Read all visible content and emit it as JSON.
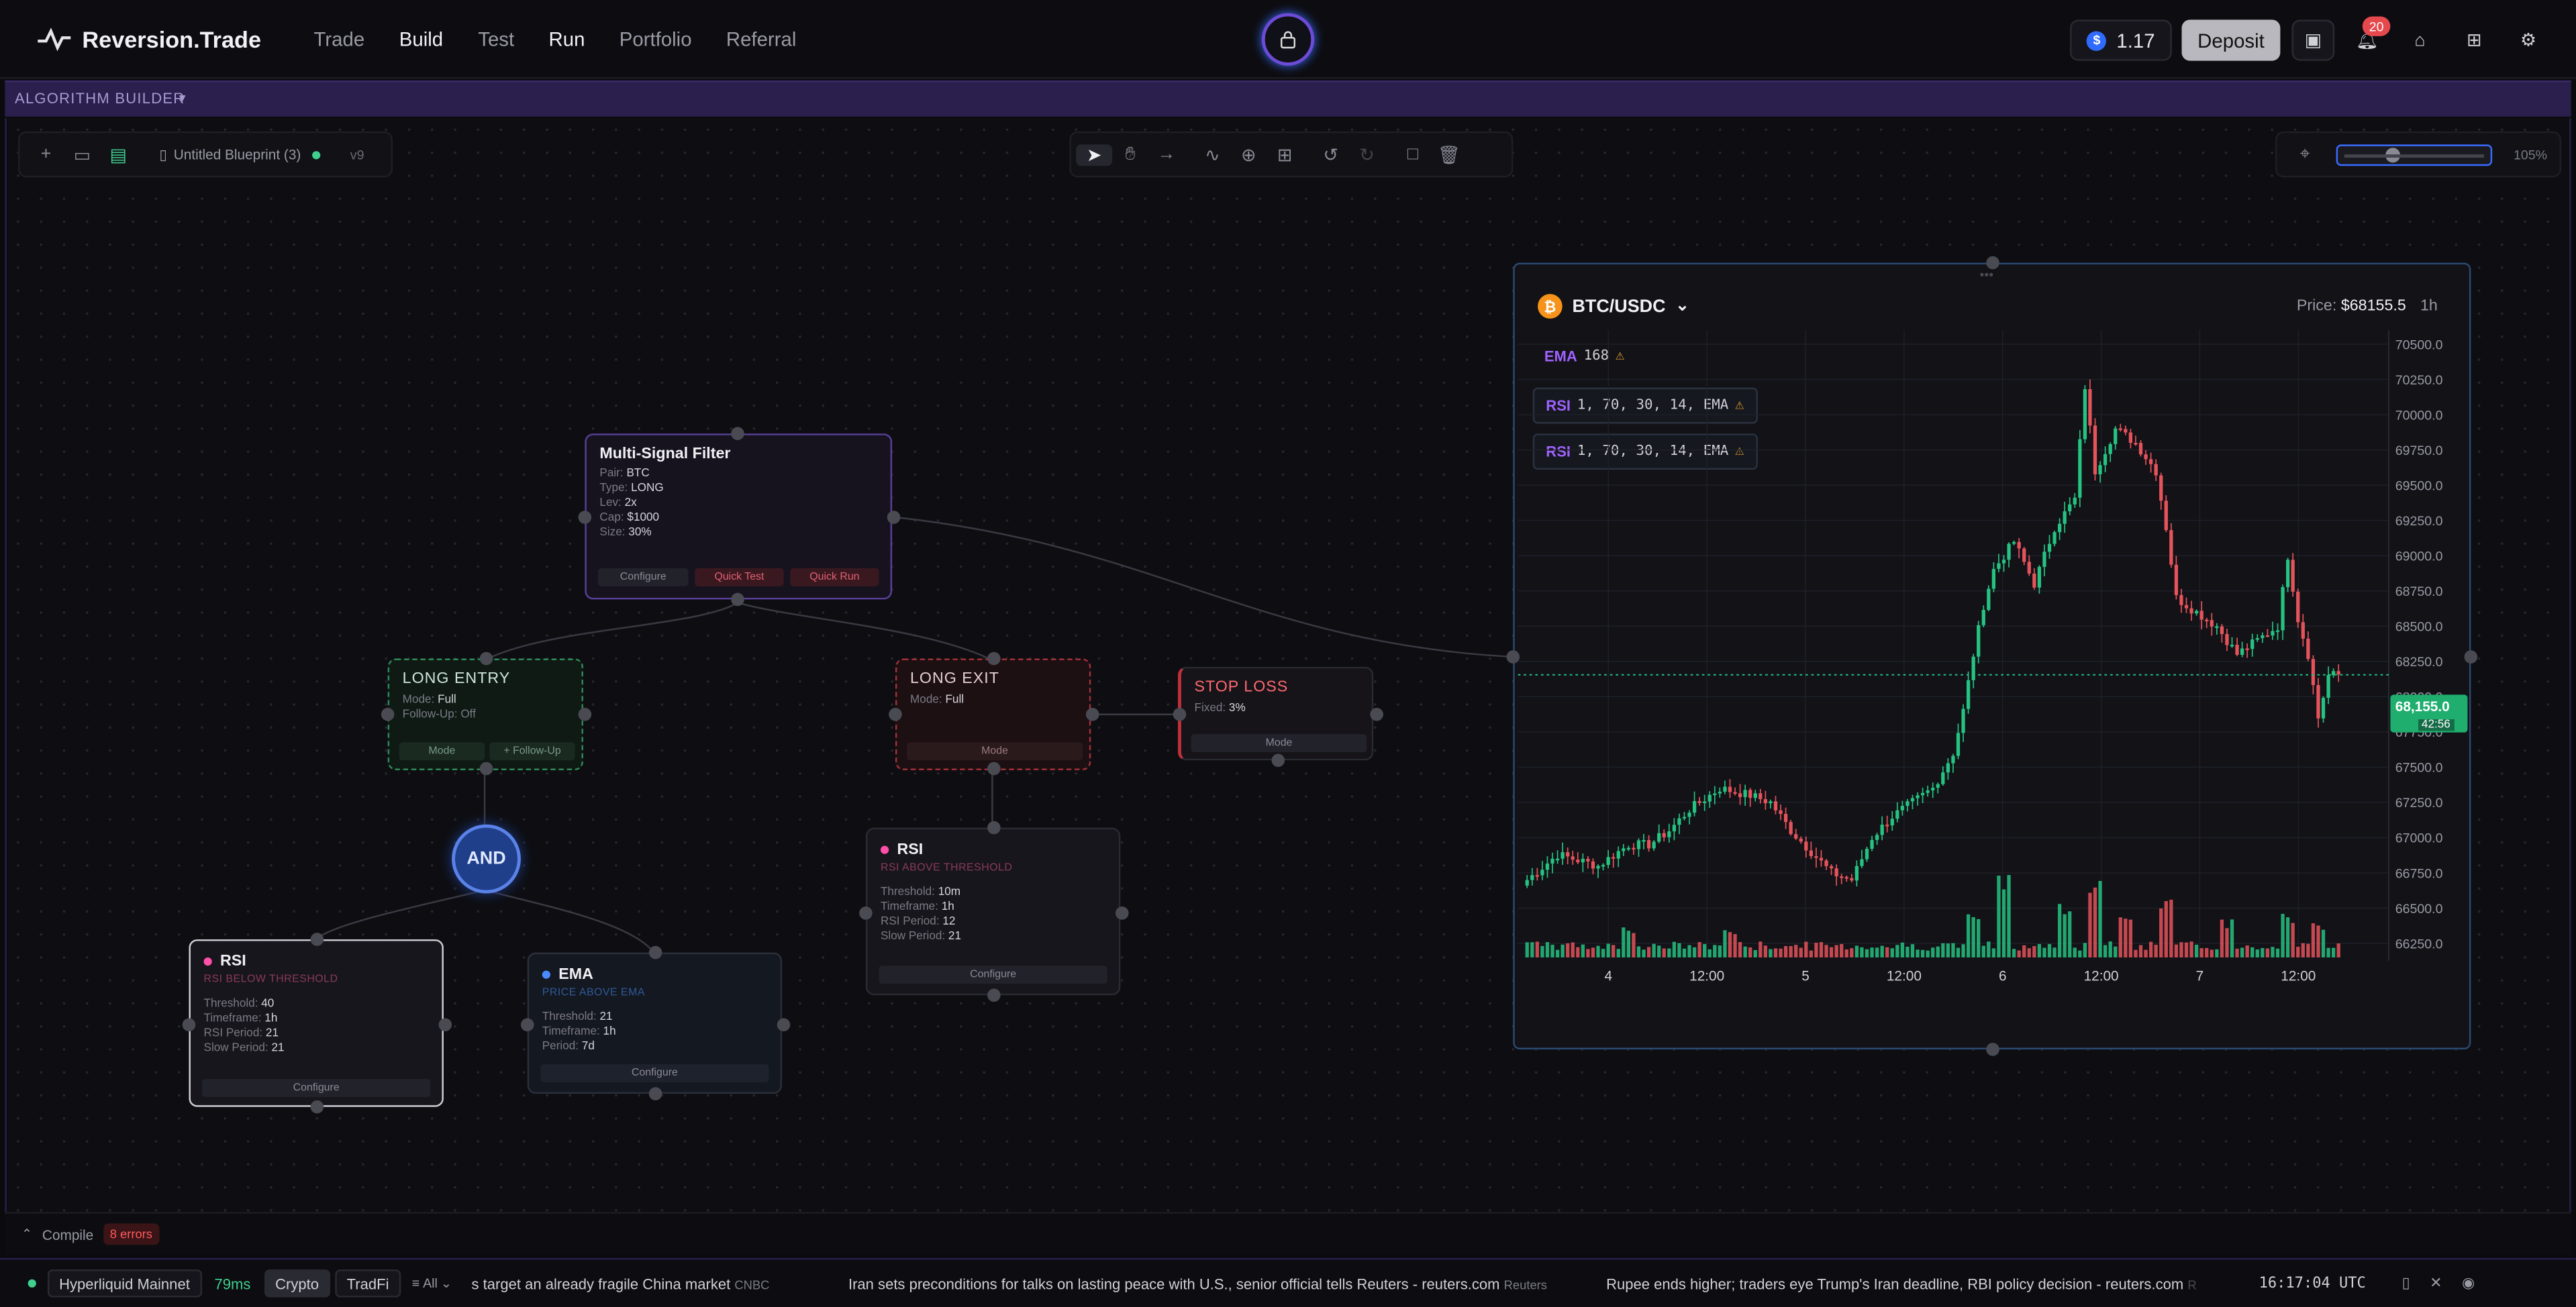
{
  "nav": {
    "brand": "Reversion.Trade",
    "links": [
      "Trade",
      "Build",
      "Test",
      "Run",
      "Portfolio",
      "Referral"
    ],
    "balance": "1.17",
    "deposit": "Deposit",
    "notifications": "20"
  },
  "algo_bar": {
    "title": "ALGORITHM BUILDER"
  },
  "blueprint": {
    "name": "Untitled Blueprint (3)",
    "version": "v9",
    "zoom": "105%",
    "zoom_fraction": 0.35
  },
  "nodes": {
    "msf": {
      "title": "Multi-Signal Filter",
      "rows": [
        [
          "Pair:",
          "BTC"
        ],
        [
          "Type:",
          "LONG"
        ],
        [
          "Lev:",
          "2x"
        ],
        [
          "Cap:",
          "$1000"
        ],
        [
          "Size:",
          "30%"
        ]
      ],
      "btn_configure": "Configure",
      "btn_quick_test": "Quick Test",
      "btn_quick_run": "Quick Run"
    },
    "long_entry": {
      "title": "LONG ENTRY",
      "rows": [
        [
          "Mode:",
          "Full"
        ],
        [
          "Follow-Up:",
          "Off"
        ]
      ],
      "btn_mode": "Mode",
      "btn_follow": "+ Follow-Up"
    },
    "long_exit": {
      "title": "LONG EXIT",
      "rows": [
        [
          "Mode:",
          "Full"
        ]
      ],
      "btn_mode": "Mode"
    },
    "stop_loss": {
      "title": "STOP LOSS",
      "rows": [
        [
          "Fixed:",
          "3%"
        ]
      ],
      "btn_mode": "Mode"
    },
    "and": {
      "label": "AND"
    },
    "rsi_right": {
      "title": "RSI",
      "subtitle": "RSI ABOVE THRESHOLD",
      "rows": [
        [
          "Threshold:",
          "10m"
        ],
        [
          "Timeframe:",
          "1h"
        ],
        [
          "RSI Period:",
          "12"
        ],
        [
          "Slow Period:",
          "21"
        ]
      ],
      "btn": "Configure"
    },
    "rsi_left": {
      "title": "RSI",
      "subtitle": "RSI BELOW THRESHOLD",
      "rows": [
        [
          "Threshold:",
          "40"
        ],
        [
          "Timeframe:",
          "1h"
        ],
        [
          "RSI Period:",
          "21"
        ],
        [
          "Slow Period:",
          "21"
        ]
      ],
      "btn": "Configure"
    },
    "ema": {
      "title": "EMA",
      "subtitle": "PRICE ABOVE EMA",
      "rows": [
        [
          "Threshold:",
          "21"
        ],
        [
          "Timeframe:",
          "1h"
        ],
        [
          "Period:",
          "7d"
        ]
      ],
      "btn": "Configure"
    }
  },
  "chart_panel": {
    "pair": "BTC/USDC",
    "price_label": "Price:",
    "price": "$68155.5",
    "timeframe": "1h",
    "indicators": [
      {
        "name": "EMA",
        "params": "168"
      },
      {
        "name": "RSI",
        "params": "1, 70, 30, 14, EMA"
      },
      {
        "name": "RSI",
        "params": "1, 70, 30, 14, EMA"
      }
    ],
    "current_price_tag": "68,155.0",
    "countdown": "42:56"
  },
  "chart_data": {
    "type": "candlestick",
    "title": "BTC/USDC",
    "ylim": [
      66150,
      70600
    ],
    "yticks": [
      "70500.0",
      "70250.0",
      "70000.0",
      "69750.0",
      "69500.0",
      "69250.0",
      "69000.0",
      "68750.0",
      "68500.0",
      "68250.0",
      "68000.0",
      "67750.0",
      "67500.0",
      "67250.0",
      "67000.0",
      "66750.0",
      "66500.0",
      "66250.0"
    ],
    "xticks": [
      "4",
      "12:00",
      "5",
      "12:00",
      "6",
      "12:00",
      "7",
      "12:00"
    ],
    "current_price": 68155.0,
    "close_anchors": [
      [
        0,
        66700
      ],
      [
        6,
        66880
      ],
      [
        14,
        66800
      ],
      [
        20,
        66950
      ],
      [
        24,
        66950
      ],
      [
        28,
        67050
      ],
      [
        32,
        67200
      ],
      [
        38,
        67350
      ],
      [
        44,
        67300
      ],
      [
        48,
        67250
      ],
      [
        52,
        67050
      ],
      [
        56,
        66900
      ],
      [
        60,
        66750
      ],
      [
        64,
        66700
      ],
      [
        68,
        67000
      ],
      [
        72,
        67150
      ],
      [
        76,
        67250
      ],
      [
        80,
        67350
      ],
      [
        84,
        67600
      ],
      [
        86,
        67900
      ],
      [
        88,
        68300
      ],
      [
        90,
        68650
      ],
      [
        92,
        68900
      ],
      [
        96,
        69100
      ],
      [
        100,
        68800
      ],
      [
        104,
        69200
      ],
      [
        108,
        69400
      ],
      [
        110,
        70200
      ],
      [
        112,
        69600
      ],
      [
        116,
        69900
      ],
      [
        120,
        69800
      ],
      [
        124,
        69600
      ],
      [
        126,
        69200
      ],
      [
        128,
        68700
      ],
      [
        132,
        68600
      ],
      [
        136,
        68500
      ],
      [
        140,
        68300
      ],
      [
        144,
        68400
      ],
      [
        148,
        68500
      ],
      [
        150,
        69000
      ],
      [
        152,
        68550
      ],
      [
        154,
        68300
      ],
      [
        156,
        67850
      ],
      [
        158,
        68150
      ],
      [
        160,
        68155
      ]
    ],
    "volume_spikes": [
      [
        20,
        0.3
      ],
      [
        40,
        0.25
      ],
      [
        88,
        0.4
      ],
      [
        94,
        0.8
      ],
      [
        106,
        0.5
      ],
      [
        112,
        0.7
      ],
      [
        118,
        0.45
      ],
      [
        126,
        0.55
      ],
      [
        138,
        0.35
      ],
      [
        150,
        0.4
      ],
      [
        156,
        0.3
      ]
    ]
  },
  "compile": {
    "label": "Compile",
    "errors": "8 errors"
  },
  "status": {
    "network": "Hyperliquid Mainnet",
    "latency": "79ms",
    "tabs": [
      "Crypto",
      "TradFi"
    ],
    "filter": "All",
    "news": [
      {
        "text": "s target an already fragile China market",
        "src": "CNBC"
      },
      {
        "text": "Iran sets preconditions for talks on lasting peace with U.S., senior official tells Reuters - reuters.com",
        "src": "Reuters"
      },
      {
        "text": "Rupee ends higher; traders eye Trump's Iran deadline, RBI policy decision - reuters.com",
        "src": "R"
      }
    ],
    "time": "16:17:04 UTC"
  }
}
